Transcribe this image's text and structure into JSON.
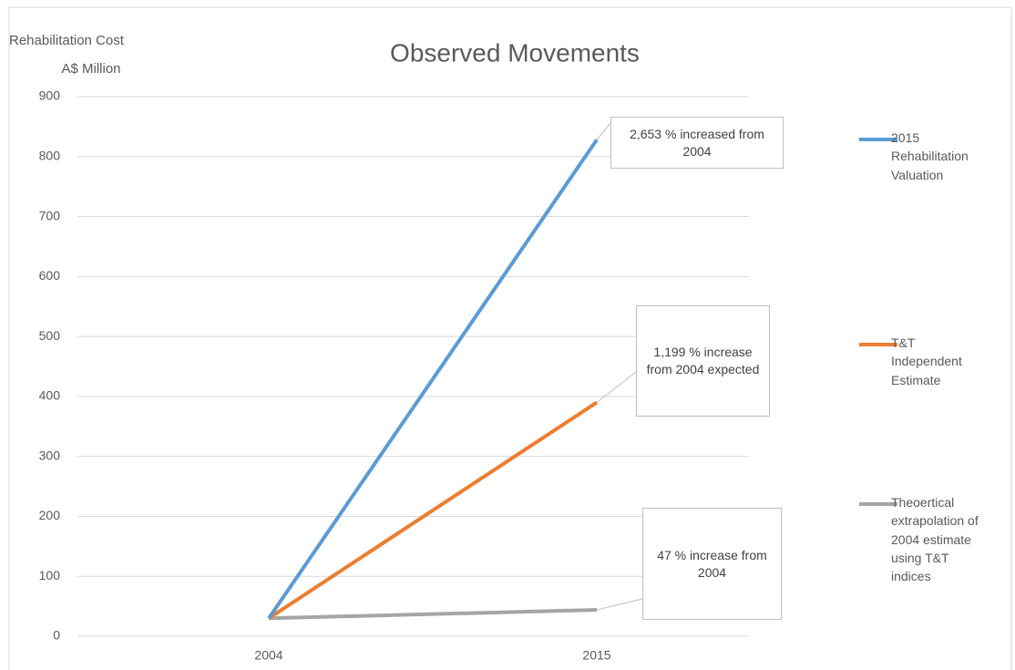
{
  "chart_data": {
    "type": "line",
    "title": "Observed Movements",
    "y_label": [
      "Rehabilitation Cost",
      "A$ Million"
    ],
    "categories": [
      "2004",
      "2015"
    ],
    "series": [
      {
        "name": "2015 Rehabilitation Valuation",
        "color": "#5b9bd5",
        "values": [
          30,
          828
        ]
      },
      {
        "name": "T&T Independent Estimate",
        "color": "#ed7d31",
        "values": [
          30,
          390
        ]
      },
      {
        "name": "Theoertical extrapolation of 2004 estimate using T&T indices",
        "color": "#a5a5a5",
        "values": [
          30,
          44
        ]
      }
    ],
    "ylim": [
      0,
      900
    ],
    "yticks": [
      0,
      100,
      200,
      300,
      400,
      500,
      600,
      700,
      800,
      900
    ],
    "grid": true,
    "legend": "right",
    "annotations": [
      "2,653 % increased from 2004",
      "1,199 % increase from 2004 expected",
      "47 % increase from 2004"
    ]
  }
}
